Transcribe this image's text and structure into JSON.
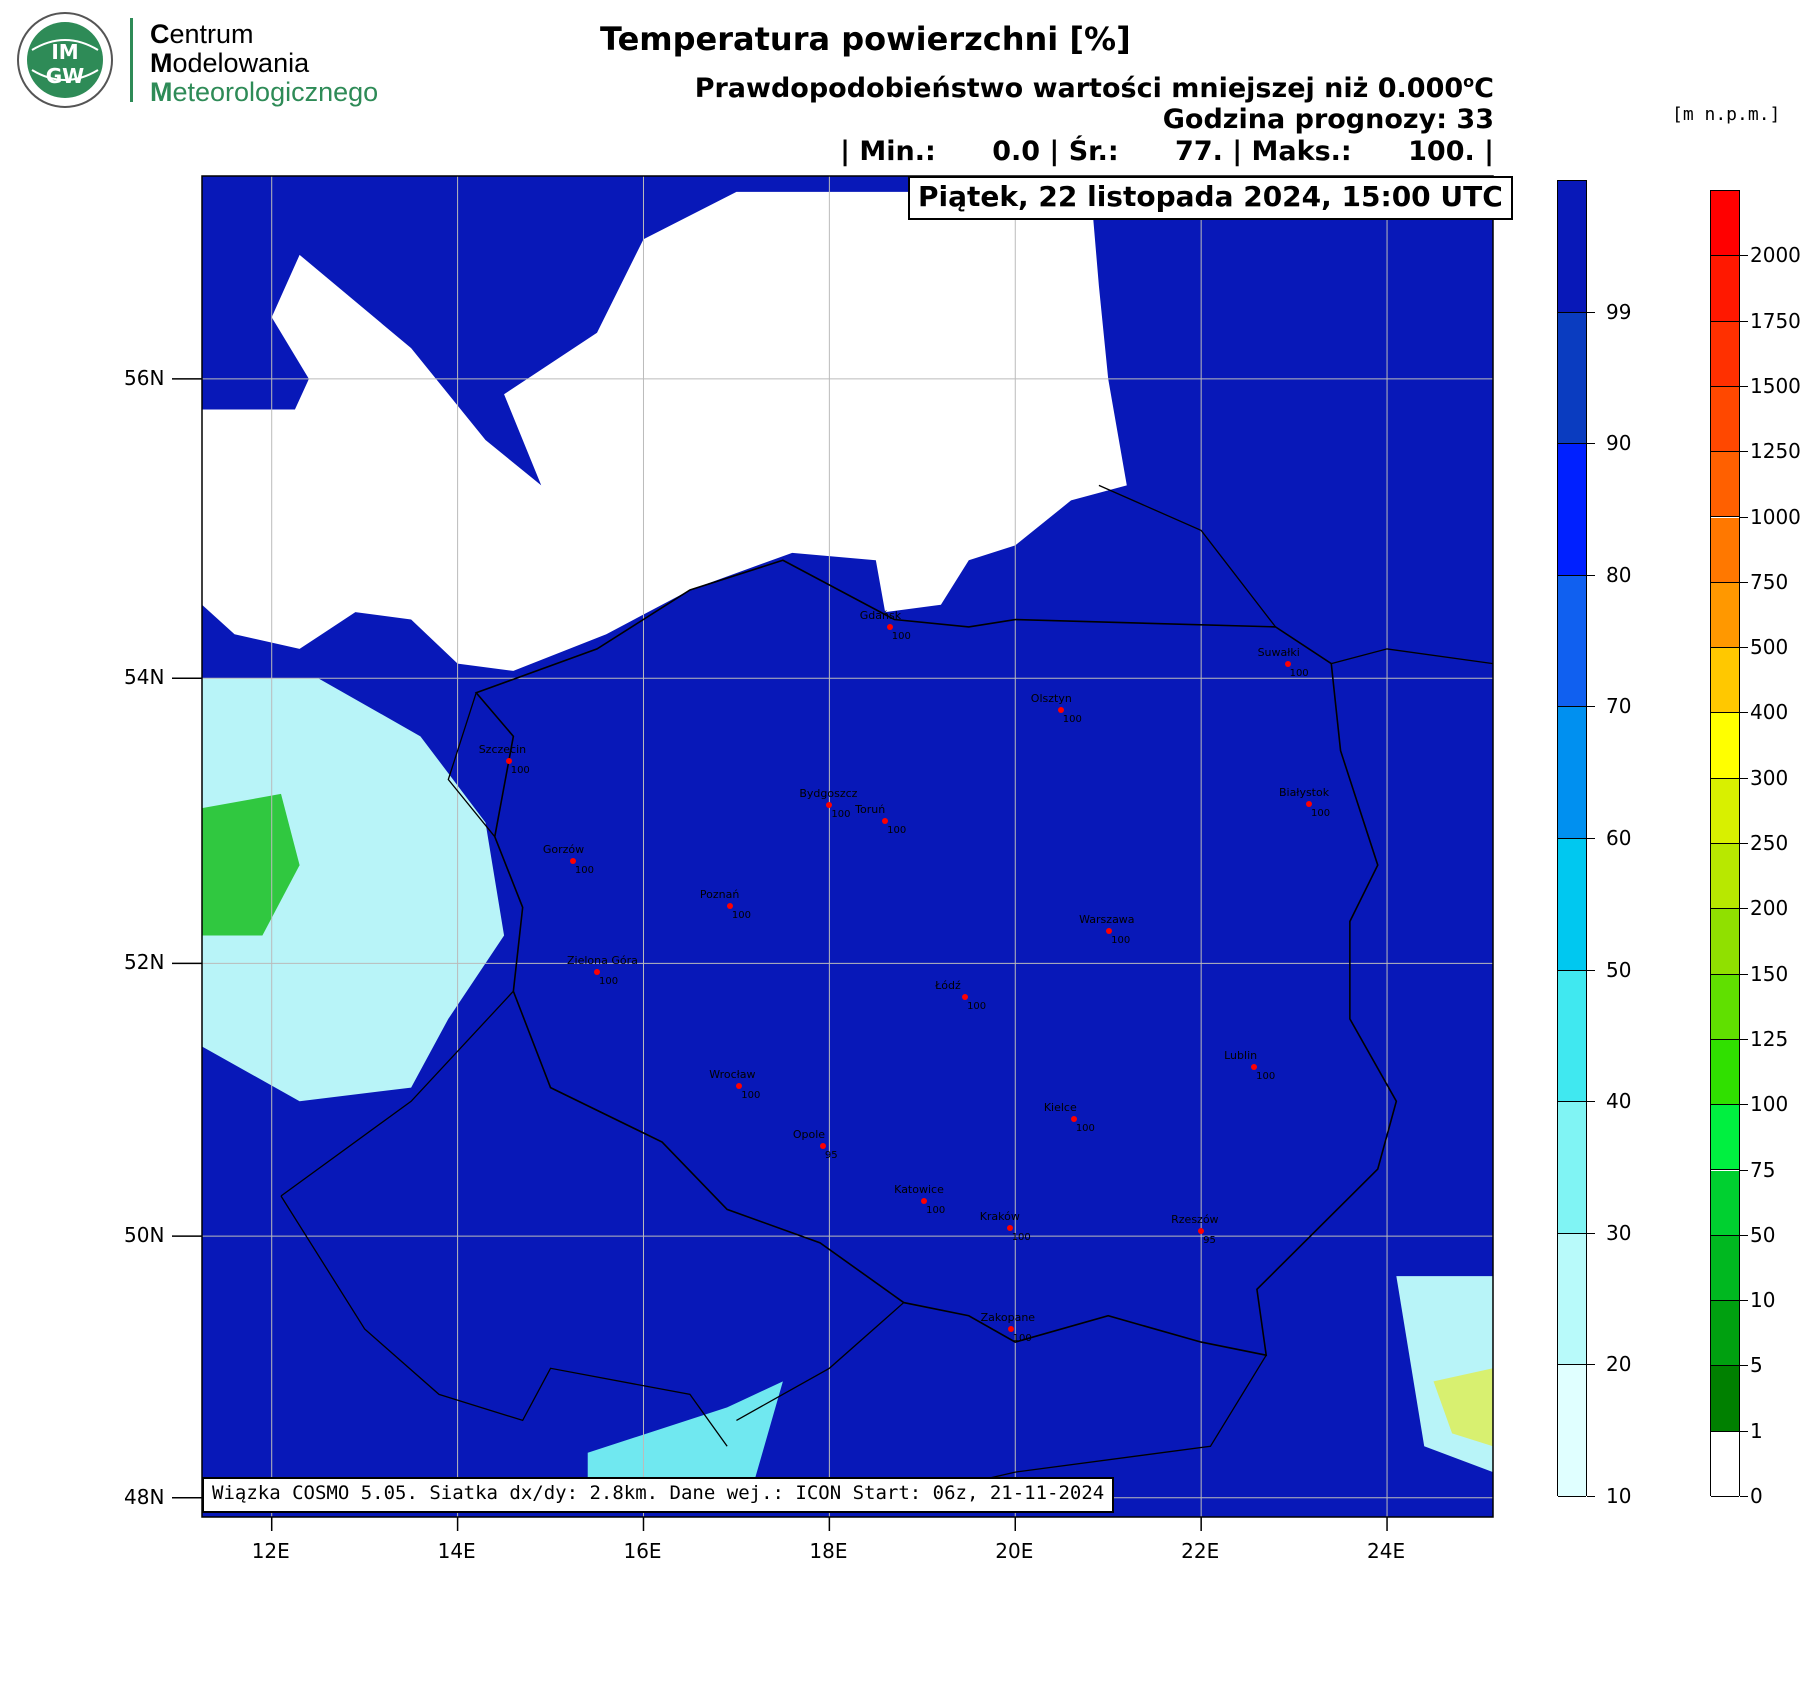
{
  "logo": {
    "org_line1_cap": "C",
    "org_line1_rest": "entrum",
    "org_line2_cap": "M",
    "org_line2_rest": "odelowania",
    "org_line3_cap": "M",
    "org_line3_rest": "eteorologicznego",
    "badge_top": "IM",
    "badge_bottom": "GW",
    "accent_color": "#2e8b57"
  },
  "header": {
    "title": "Temperatura powierzchni [%]",
    "subtitle_prefix": "Prawdopodobieństwo wartości mniejszej niż 0.000",
    "subtitle_unit_sup": "o",
    "subtitle_unit": "C",
    "forecast_hour": "Godzina prognozy: 33",
    "stats": "| Min.:      0.0 | Śr.:      77. | Maks.:      100. |"
  },
  "map": {
    "date_label": "Piątek, 22 listopada 2024, 15:00 UTC",
    "info_label": "Wiązka COSMO 5.05. Siatka dx/dy: 2.8km. Dane wej.: ICON Start: 06z, 21-11-2024",
    "lat_ticks": [
      "56N",
      "54N",
      "52N",
      "50N",
      "48N"
    ],
    "lon_ticks": [
      "12E",
      "14E",
      "16E",
      "18E",
      "20E",
      "22E",
      "24E"
    ],
    "colors": {
      "sea": "#ffffff",
      "land": "#0818b8",
      "border": "#000000",
      "city": "#ff0000"
    },
    "cities": [
      {
        "name": "Gdańsk",
        "value": "100",
        "lon": 18.65,
        "lat": 54.35
      },
      {
        "name": "Suwałki",
        "value": "100",
        "lon": 22.93,
        "lat": 54.1
      },
      {
        "name": "Olsztyn",
        "value": "100",
        "lon": 20.49,
        "lat": 53.78
      },
      {
        "name": "Szczecin",
        "value": "100",
        "lon": 14.55,
        "lat": 53.43
      },
      {
        "name": "Bydgoszcz",
        "value": "100",
        "lon": 18.0,
        "lat": 53.12
      },
      {
        "name": "Toruń",
        "value": "100",
        "lon": 18.6,
        "lat": 53.01
      },
      {
        "name": "Białystok",
        "value": "100",
        "lon": 23.16,
        "lat": 53.13
      },
      {
        "name": "Gorzów",
        "value": "100",
        "lon": 15.24,
        "lat": 52.73
      },
      {
        "name": "Poznań",
        "value": "100",
        "lon": 16.93,
        "lat": 52.41
      },
      {
        "name": "Warszawa",
        "value": "100",
        "lon": 21.01,
        "lat": 52.23
      },
      {
        "name": "Zielona Góra",
        "value": "100",
        "lon": 15.5,
        "lat": 51.94
      },
      {
        "name": "Łódź",
        "value": "100",
        "lon": 19.46,
        "lat": 51.76
      },
      {
        "name": "Lublin",
        "value": "100",
        "lon": 22.57,
        "lat": 51.25
      },
      {
        "name": "Wrocław",
        "value": "100",
        "lon": 17.03,
        "lat": 51.11
      },
      {
        "name": "Kielce",
        "value": "100",
        "lon": 20.63,
        "lat": 50.87
      },
      {
        "name": "Opole",
        "value": "95",
        "lon": 17.93,
        "lat": 50.67
      },
      {
        "name": "Katowice",
        "value": "100",
        "lon": 19.02,
        "lat": 50.26
      },
      {
        "name": "Kraków",
        "value": "100",
        "lon": 19.94,
        "lat": 50.06
      },
      {
        "name": "Rzeszów",
        "value": "95",
        "lon": 22.0,
        "lat": 50.04
      },
      {
        "name": "Zakopane",
        "value": "100",
        "lon": 19.95,
        "lat": 49.3
      }
    ]
  },
  "colorbar_prob": {
    "labels": [
      "99",
      "90",
      "80",
      "70",
      "60",
      "50",
      "40",
      "30",
      "20",
      "10"
    ],
    "colors": [
      "#0818b8",
      "#0a3cc0",
      "#0020ff",
      "#1060f0",
      "#0090f0",
      "#00c8f0",
      "#40e8f0",
      "#80f4f4",
      "#b8fafa",
      "#e0ffff"
    ]
  },
  "colorbar_height": {
    "unit": "[m n.p.m.]",
    "labels": [
      "2000",
      "1750",
      "1500",
      "1250",
      "1000",
      "750",
      "500",
      "400",
      "300",
      "250",
      "200",
      "150",
      "125",
      "100",
      "75",
      "50",
      "10",
      "5",
      "1",
      "0"
    ],
    "colors": [
      "#ff0000",
      "#ff1800",
      "#ff3000",
      "#ff4800",
      "#ff6000",
      "#ff7800",
      "#ff9800",
      "#ffc800",
      "#ffff00",
      "#d8f000",
      "#b8e800",
      "#90e000",
      "#60e000",
      "#30e000",
      "#00f040",
      "#00d030",
      "#00b820",
      "#00a010",
      "#008000",
      "#ffffff"
    ]
  }
}
